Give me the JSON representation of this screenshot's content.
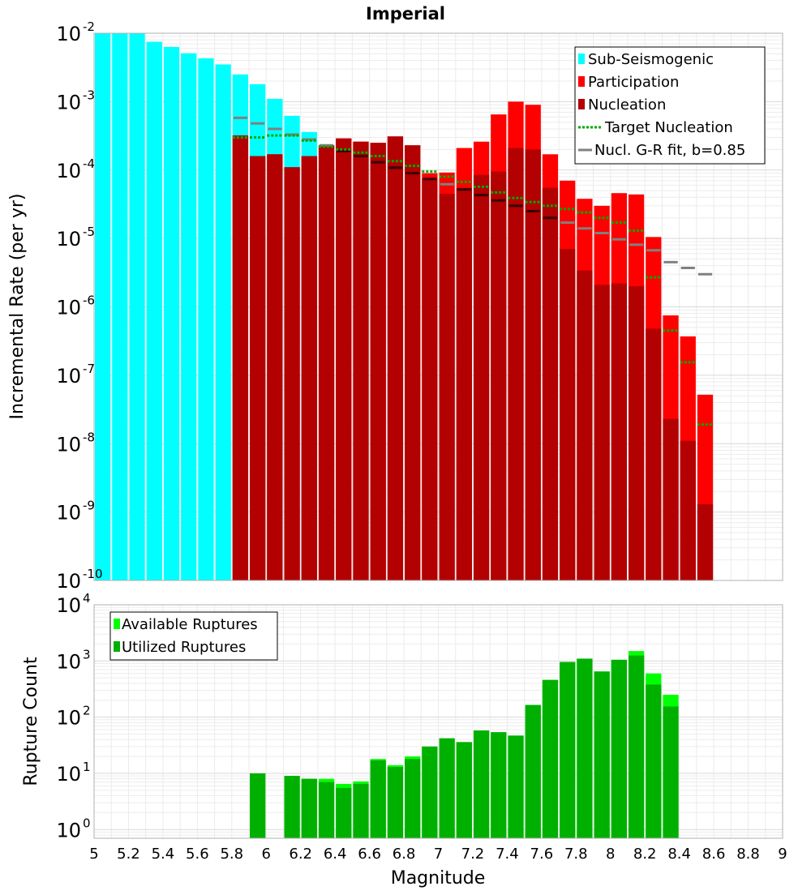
{
  "chart_data": [
    {
      "type": "bar",
      "title": "Imperial",
      "ylabel": "Incremental Rate (per yr)",
      "xlabel": "",
      "yscale": "log",
      "ylim": [
        1e-10,
        0.01
      ],
      "xlim": [
        5.0,
        9.0
      ],
      "grid": true,
      "legend_position": "top-right",
      "y_ticks": [
        {
          "base": "10",
          "exp": "-10"
        },
        {
          "base": "10",
          "exp": "-9"
        },
        {
          "base": "10",
          "exp": "-8"
        },
        {
          "base": "10",
          "exp": "-7"
        },
        {
          "base": "10",
          "exp": "-6"
        },
        {
          "base": "10",
          "exp": "-5"
        },
        {
          "base": "10",
          "exp": "-4"
        },
        {
          "base": "10",
          "exp": "-3"
        },
        {
          "base": "10",
          "exp": "-2"
        }
      ],
      "legend": [
        "Sub-Seismogenic",
        "Participation",
        "Nucleation",
        "Target Nucleation",
        "Nucl. G-R fit, b=0.85"
      ],
      "colors": {
        "sub": "#00ffff",
        "participation": "#ff0000",
        "nucleation": "#b30000",
        "target": "#00aa00",
        "gr": "#808080"
      },
      "series": [
        {
          "name": "Sub-Seismogenic",
          "x": [
            5.05,
            5.15,
            5.25,
            5.35,
            5.45,
            5.55,
            5.65,
            5.75,
            5.85,
            5.95,
            6.05,
            6.15,
            6.25
          ],
          "values": [
            0.01,
            0.01,
            0.01,
            0.0075,
            0.0063,
            0.0051,
            0.0043,
            0.0035,
            0.0025,
            0.0018,
            0.0011,
            0.00062,
            0.00036
          ]
        },
        {
          "name": "Participation",
          "x": [
            5.85,
            5.95,
            6.05,
            6.15,
            6.25,
            6.35,
            6.45,
            6.55,
            6.65,
            6.75,
            6.85,
            6.95,
            7.05,
            7.15,
            7.25,
            7.35,
            7.45,
            7.55,
            7.65,
            7.75,
            7.85,
            7.95,
            8.05,
            8.15,
            8.25,
            8.35,
            8.45,
            8.55
          ],
          "values": [
            0.00032,
            0.00016,
            0.00017,
            0.00011,
            0.00016,
            0.00023,
            0.00029,
            0.00026,
            0.00025,
            0.00031,
            0.00023,
            9e-05,
            9.2e-05,
            0.00021,
            0.00026,
            0.00065,
            0.001,
            0.0009,
            0.00017,
            7e-05,
            3.8e-05,
            3e-05,
            4.6e-05,
            4.4e-05,
            1.05e-05,
            7.5e-07,
            3.7e-07,
            5.2e-08
          ]
        },
        {
          "name": "Nucleation",
          "x": [
            5.85,
            5.95,
            6.05,
            6.15,
            6.25,
            6.35,
            6.45,
            6.55,
            6.65,
            6.75,
            6.85,
            6.95,
            7.05,
            7.15,
            7.25,
            7.35,
            7.45,
            7.55,
            7.65,
            7.75,
            7.85,
            7.95,
            8.05,
            8.15,
            8.25,
            8.35,
            8.45,
            8.55
          ],
          "values": [
            0.00032,
            0.00016,
            0.00017,
            0.00011,
            0.00016,
            0.00023,
            0.00029,
            0.00026,
            0.00025,
            0.00031,
            0.00023,
            7.5e-05,
            4.5e-05,
            5.5e-05,
            8.5e-05,
            9.5e-05,
            0.00021,
            0.0002,
            5.5e-05,
            7e-06,
            3.4e-06,
            2.1e-06,
            2.2e-06,
            2e-06,
            4.8e-07,
            2.3e-08,
            1.1e-08,
            1.3e-09
          ]
        },
        {
          "name": "Target Nucleation",
          "x": [
            5.85,
            5.95,
            6.05,
            6.15,
            6.25,
            6.35,
            6.45,
            6.55,
            6.65,
            6.75,
            6.85,
            6.95,
            7.05,
            7.15,
            7.25,
            7.35,
            7.45,
            7.55,
            7.65,
            7.75,
            7.85,
            7.95,
            8.05,
            8.15,
            8.25,
            8.35,
            8.45,
            8.55
          ],
          "values": [
            0.0003,
            0.0003,
            0.00032,
            0.00032,
            0.00027,
            0.00022,
            0.0002,
            0.00018,
            0.00016,
            0.000135,
            0.000115,
            9.5e-05,
            8e-05,
            6.7e-05,
            5.7e-05,
            4.7e-05,
            3.9e-05,
            3.4e-05,
            3e-05,
            2.7e-05,
            2.4e-05,
            2e-05,
            1.7e-05,
            1.3e-05,
            2.7e-06,
            4.5e-07,
            1.55e-07,
            1.9e-08
          ]
        },
        {
          "name": "Nucl. G-R fit, b=0.85",
          "x": [
            5.85,
            5.95,
            6.05,
            6.15,
            6.25,
            6.35,
            6.45,
            6.55,
            6.65,
            6.75,
            6.85,
            6.95,
            7.05,
            7.15,
            7.25,
            7.35,
            7.45,
            7.55,
            7.65,
            7.75,
            7.85,
            7.95,
            8.05,
            8.15,
            8.25,
            8.35,
            8.45,
            8.55
          ],
          "values": [
            0.00058,
            0.00048,
            0.0004,
            0.00033,
            0.00028,
            0.00023,
            0.00019,
            0.00016,
            0.00013,
            0.000108,
            9e-05,
            7.4e-05,
            6.2e-05,
            5.2e-05,
            4.3e-05,
            3.6e-05,
            3e-05,
            2.5e-05,
            2e-05,
            1.7e-05,
            1.4e-05,
            1.2e-05,
            9.7e-06,
            8.1e-06,
            6.7e-06,
            4.5e-06,
            3.7e-06,
            3e-06
          ]
        }
      ]
    },
    {
      "type": "bar",
      "title": "",
      "ylabel": "Rupture Count",
      "xlabel": "Magnitude",
      "yscale": "log",
      "ylim": [
        0.7,
        10000
      ],
      "xlim": [
        5.0,
        9.0
      ],
      "grid": true,
      "legend_position": "top-left",
      "x_ticks": [
        "5",
        "5.2",
        "5.4",
        "5.6",
        "5.8",
        "6",
        "6.2",
        "6.4",
        "6.6",
        "6.8",
        "7",
        "7.2",
        "7.4",
        "7.6",
        "7.8",
        "8",
        "8.2",
        "8.4",
        "8.6",
        "8.8",
        "9"
      ],
      "y_ticks": [
        {
          "base": "10",
          "exp": "0"
        },
        {
          "base": "10",
          "exp": "1"
        },
        {
          "base": "10",
          "exp": "2"
        },
        {
          "base": "10",
          "exp": "3"
        },
        {
          "base": "10",
          "exp": "4"
        }
      ],
      "legend": [
        "Available Ruptures",
        "Utilized Ruptures"
      ],
      "colors": {
        "available": "#00ff00",
        "utilized": "#00b000"
      },
      "series": [
        {
          "name": "Available Ruptures",
          "x": [
            5.95,
            6.15,
            6.25,
            6.35,
            6.45,
            6.55,
            6.65,
            6.75,
            6.85,
            6.95,
            7.05,
            7.15,
            7.25,
            7.35,
            7.45,
            7.55,
            7.65,
            7.75,
            7.85,
            7.95,
            8.05,
            8.15,
            8.25,
            8.35
          ],
          "values": [
            10,
            9,
            8,
            8,
            6.5,
            7.2,
            18,
            14,
            20,
            30,
            42,
            36,
            58,
            54,
            47,
            165,
            460,
            960,
            1100,
            650,
            1050,
            1500,
            600,
            250
          ]
        },
        {
          "name": "Utilized Ruptures",
          "x": [
            5.95,
            6.15,
            6.25,
            6.35,
            6.45,
            6.55,
            6.65,
            6.75,
            6.85,
            6.95,
            7.05,
            7.15,
            7.25,
            7.35,
            7.45,
            7.55,
            7.65,
            7.75,
            7.85,
            7.95,
            8.05,
            8.15,
            8.25,
            8.35
          ],
          "values": [
            10,
            9,
            8,
            7,
            5.5,
            6.5,
            17,
            13,
            18,
            30,
            42,
            36,
            58,
            54,
            47,
            165,
            460,
            960,
            1100,
            650,
            1050,
            1250,
            380,
            155
          ]
        }
      ]
    }
  ]
}
